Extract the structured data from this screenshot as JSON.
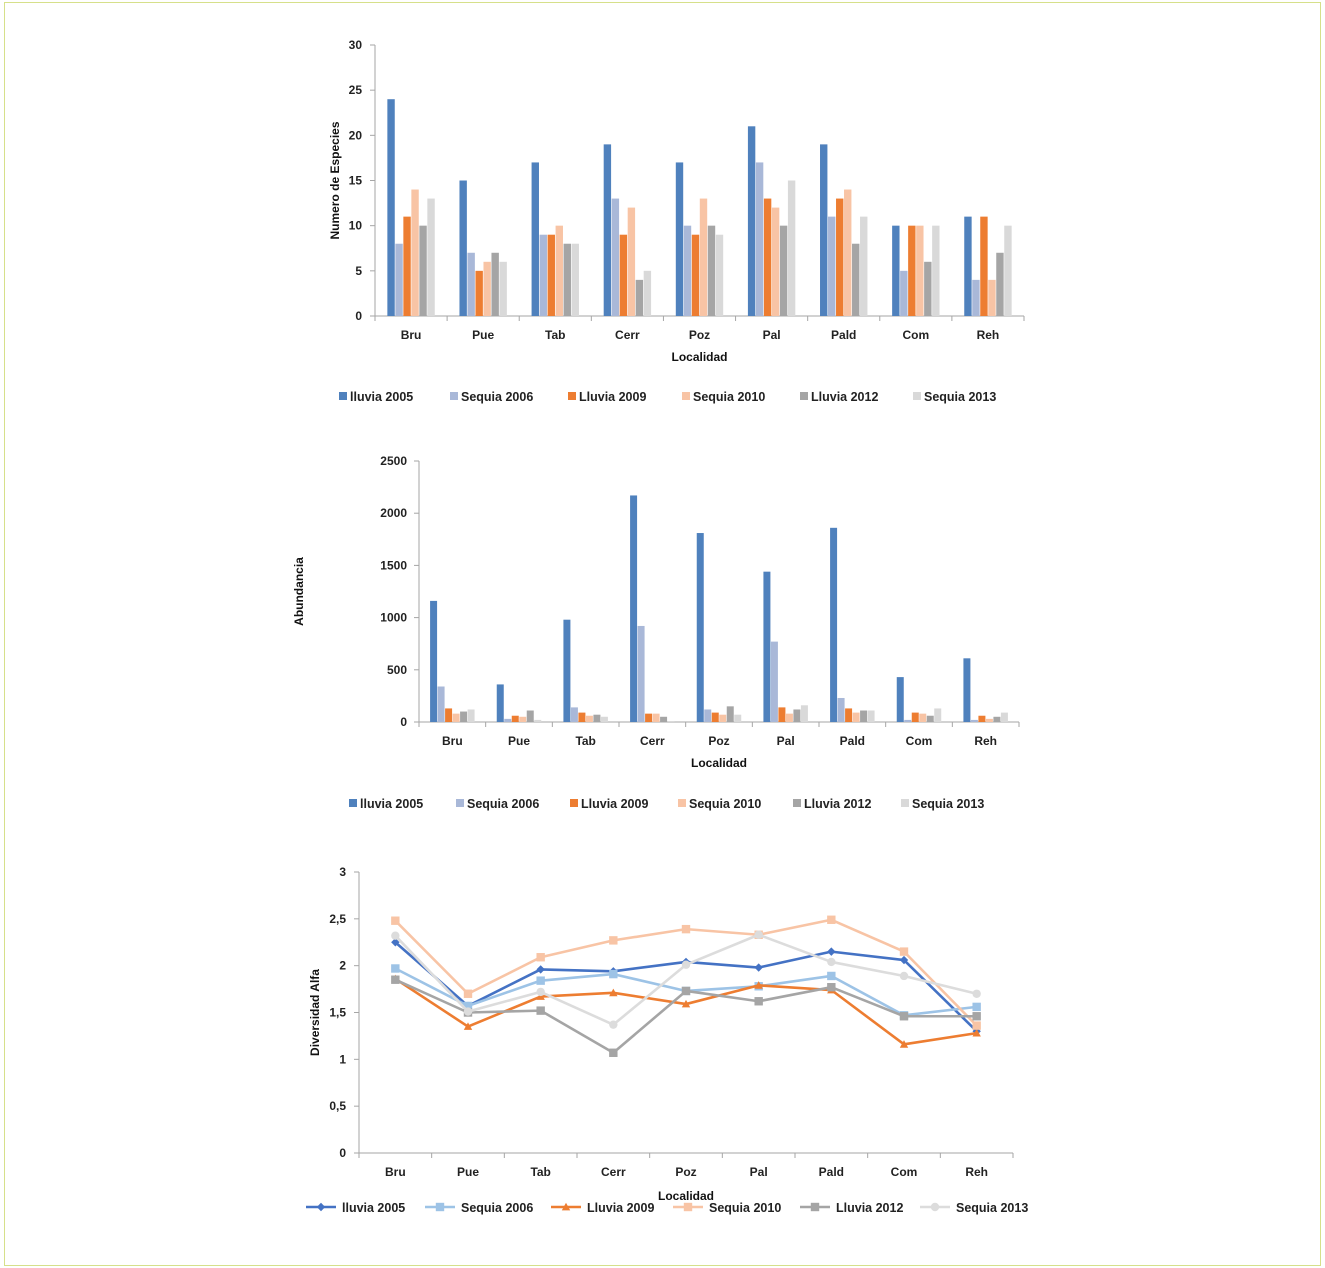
{
  "chart_data": [
    {
      "type": "bar",
      "xlabel": "Localidad",
      "ylabel": "Numero de Especies",
      "ylim": [
        0,
        30
      ],
      "yticks": [
        0,
        5,
        10,
        15,
        20,
        25,
        30
      ],
      "legend_position": "bottom",
      "categories": [
        "Bru",
        "Pue",
        "Tab",
        "Cerr",
        "Poz",
        "Pal",
        "Pald",
        "Com",
        "Reh"
      ],
      "series": [
        {
          "name": "lluvia 2005",
          "color": "#4f81bd",
          "values": [
            24,
            15,
            17,
            19,
            17,
            21,
            19,
            10,
            11
          ]
        },
        {
          "name": "Sequia 2006",
          "color": "#a9b8d8",
          "values": [
            8,
            7,
            9,
            13,
            10,
            17,
            11,
            5,
            4
          ]
        },
        {
          "name": "Lluvia 2009",
          "color": "#ed7d31",
          "values": [
            11,
            5,
            9,
            9,
            9,
            13,
            13,
            10,
            11
          ]
        },
        {
          "name": "Sequia 2010",
          "color": "#f8c4a5",
          "values": [
            14,
            6,
            10,
            12,
            13,
            12,
            14,
            10,
            4
          ]
        },
        {
          "name": "Lluvia 2012",
          "color": "#a5a5a5",
          "values": [
            10,
            7,
            8,
            4,
            10,
            10,
            8,
            6,
            7
          ]
        },
        {
          "name": "Sequia 2013",
          "color": "#d9d9d9",
          "values": [
            13,
            6,
            8,
            5,
            9,
            15,
            11,
            10,
            10
          ]
        }
      ]
    },
    {
      "type": "bar",
      "xlabel": "Localidad",
      "ylabel": "Abundancia",
      "ylim": [
        0,
        2500
      ],
      "yticks": [
        0,
        500,
        1000,
        1500,
        2000,
        2500
      ],
      "legend_position": "bottom",
      "categories": [
        "Bru",
        "Pue",
        "Tab",
        "Cerr",
        "Poz",
        "Pal",
        "Pald",
        "Com",
        "Reh"
      ],
      "series": [
        {
          "name": "lluvia 2005",
          "color": "#4f81bd",
          "values": [
            1160,
            360,
            980,
            2170,
            1810,
            1440,
            1860,
            430,
            610
          ]
        },
        {
          "name": "Sequia 2006",
          "color": "#a9b8d8",
          "values": [
            340,
            30,
            140,
            920,
            120,
            770,
            230,
            20,
            20
          ]
        },
        {
          "name": "Lluvia 2009",
          "color": "#ed7d31",
          "values": [
            130,
            60,
            90,
            80,
            90,
            140,
            130,
            90,
            60
          ]
        },
        {
          "name": "Sequia 2010",
          "color": "#f8c4a5",
          "values": [
            80,
            50,
            60,
            80,
            70,
            80,
            90,
            80,
            30
          ]
        },
        {
          "name": "Lluvia 2012",
          "color": "#a5a5a5",
          "values": [
            100,
            110,
            70,
            50,
            150,
            120,
            110,
            60,
            50
          ]
        },
        {
          "name": "Sequia 2013",
          "color": "#d9d9d9",
          "values": [
            120,
            20,
            50,
            10,
            70,
            160,
            110,
            130,
            90
          ]
        }
      ]
    },
    {
      "type": "line",
      "xlabel": "Localidad",
      "ylabel": "Diversidad Alfa",
      "ylim": [
        0,
        3
      ],
      "yticks": [
        0,
        0.5,
        1,
        1.5,
        2,
        2.5,
        3
      ],
      "ytick_labels": [
        "0",
        "0,5",
        "1",
        "1,5",
        "2",
        "2,5",
        "3"
      ],
      "legend_position": "bottom",
      "categories": [
        "Bru",
        "Pue",
        "Tab",
        "Cerr",
        "Poz",
        "Pal",
        "Pald",
        "Com",
        "Reh"
      ],
      "series": [
        {
          "name": "lluvia 2005",
          "color": "#4472c4",
          "marker": "diamond",
          "values": [
            2.25,
            1.57,
            1.96,
            1.94,
            2.04,
            1.98,
            2.15,
            2.06,
            1.3
          ]
        },
        {
          "name": "Sequia 2006",
          "color": "#9dc3e6",
          "marker": "square",
          "values": [
            1.97,
            1.57,
            1.84,
            1.91,
            1.73,
            1.78,
            1.89,
            1.47,
            1.56
          ]
        },
        {
          "name": "Lluvia 2009",
          "color": "#ed7d31",
          "marker": "triangle",
          "values": [
            1.86,
            1.35,
            1.67,
            1.71,
            1.59,
            1.79,
            1.74,
            1.16,
            1.28
          ]
        },
        {
          "name": "Sequia 2010",
          "color": "#f8c4a5",
          "marker": "square",
          "values": [
            2.48,
            1.7,
            2.09,
            2.27,
            2.39,
            2.33,
            2.49,
            2.15,
            1.36
          ]
        },
        {
          "name": "Lluvia 2012",
          "color": "#a5a5a5",
          "marker": "square",
          "values": [
            1.85,
            1.5,
            1.52,
            1.07,
            1.73,
            1.62,
            1.77,
            1.46,
            1.46
          ]
        },
        {
          "name": "Sequia 2013",
          "color": "#dcdcdc",
          "marker": "circle",
          "values": [
            2.32,
            1.51,
            1.72,
            1.37,
            2.01,
            2.33,
            2.04,
            1.89,
            1.7
          ]
        }
      ]
    }
  ]
}
